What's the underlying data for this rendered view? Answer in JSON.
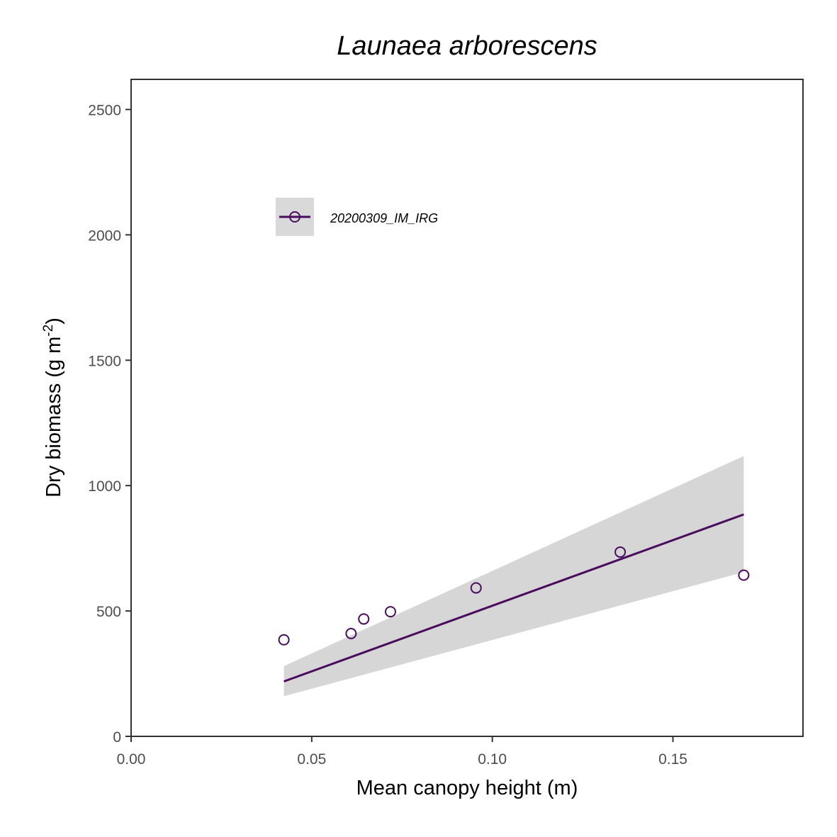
{
  "chart_data": {
    "type": "scatter",
    "title": "Launaea arborescens",
    "xlabel": "Mean canopy height (m)",
    "ylabel_main": "Dry biomass (g m",
    "ylabel_sup": "-2",
    "ylabel_end": ")",
    "xlim": [
      0,
      0.186
    ],
    "ylim": [
      0,
      2620
    ],
    "x_ticks": [
      0.0,
      0.05,
      0.1,
      0.15
    ],
    "x_tick_labels": [
      "0.00",
      "0.05",
      "0.10",
      "0.15"
    ],
    "y_ticks": [
      0,
      500,
      1000,
      1500,
      2000,
      2500
    ],
    "y_tick_labels": [
      "0",
      "500",
      "1000",
      "1500",
      "2000",
      "2500"
    ],
    "grid": false,
    "legend_position": "top-left",
    "series": [
      {
        "name": "20200309_IM_IRG",
        "color": "#4a0d5e",
        "points": [
          {
            "x": 0.0423,
            "y": 385
          },
          {
            "x": 0.0609,
            "y": 410
          },
          {
            "x": 0.0644,
            "y": 468
          },
          {
            "x": 0.0718,
            "y": 497
          },
          {
            "x": 0.0955,
            "y": 592
          },
          {
            "x": 0.1354,
            "y": 735
          },
          {
            "x": 0.1696,
            "y": 643
          }
        ],
        "fit": {
          "x": [
            0.0423,
            0.1696
          ],
          "y": [
            219,
            885
          ]
        },
        "confidence_band": {
          "x": [
            0.0423,
            0.1696
          ],
          "lower": [
            160,
            655
          ],
          "upper": [
            280,
            1118
          ]
        }
      }
    ],
    "band_color": "#d6d6d6",
    "legend_key_bg": "#d9d9d9"
  }
}
